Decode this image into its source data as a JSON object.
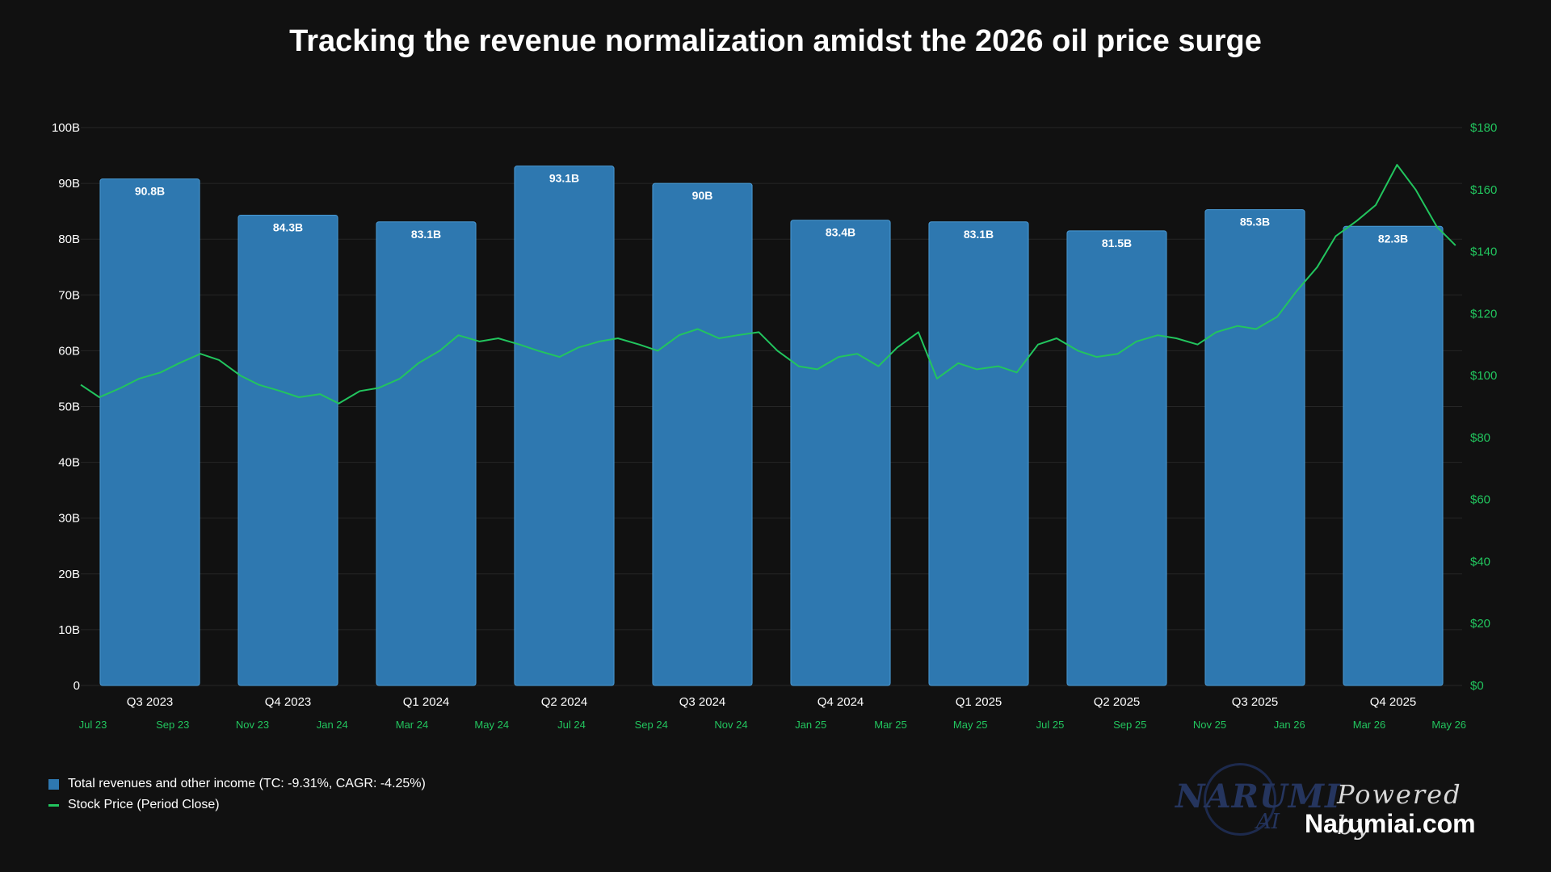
{
  "title": "Tracking the revenue normalization amidst the 2026 oil price surge",
  "colors": {
    "background": "#111111",
    "bar": "#2e78b0",
    "bar_border": "#4a9ad4",
    "line": "#22c55e",
    "grid": "#262626",
    "left_axis_text": "#ffffff",
    "right_axis_text": "#22c55e"
  },
  "legend": {
    "revenue": "Total revenues and other income (TC: -9.31%, CAGR: -4.25%)",
    "price": "Stock Price (Period Close)"
  },
  "branding": {
    "logo_text": "NARUMI",
    "logo_sub": "AI",
    "powered_by": "Powered by",
    "site": "Narumiai.com"
  },
  "chart_data": {
    "type": "bar",
    "title": "Tracking the revenue normalization amidst the 2026 oil price surge",
    "categories": [
      "Q3 2023",
      "Q4 2023",
      "Q1 2024",
      "Q2 2024",
      "Q3 2024",
      "Q4 2024",
      "Q1 2025",
      "Q2 2025",
      "Q3 2025",
      "Q4 2025"
    ],
    "series": [
      {
        "name": "Total revenues and other income (TC: -9.31%, CAGR: -4.25%)",
        "type": "bar",
        "axis": "left",
        "values": [
          90.8,
          84.3,
          83.1,
          93.1,
          90,
          83.4,
          83.1,
          81.5,
          85.3,
          82.3
        ],
        "data_labels": [
          "90.8B",
          "84.3B",
          "83.1B",
          "93.1B",
          "90B",
          "83.4B",
          "83.1B",
          "81.5B",
          "85.3B",
          "82.3B"
        ]
      },
      {
        "name": "Stock Price (Period Close)",
        "type": "line",
        "axis": "right",
        "x": [
          "2023-07-01",
          "2023-07-15",
          "2023-08-01",
          "2023-08-15",
          "2023-09-01",
          "2023-09-15",
          "2023-10-01",
          "2023-10-15",
          "2023-11-01",
          "2023-11-15",
          "2023-12-01",
          "2023-12-15",
          "2024-01-01",
          "2024-01-15",
          "2024-02-01",
          "2024-02-15",
          "2024-03-01",
          "2024-03-15",
          "2024-04-01",
          "2024-04-15",
          "2024-05-01",
          "2024-05-15",
          "2024-06-01",
          "2024-06-15",
          "2024-07-01",
          "2024-07-15",
          "2024-08-01",
          "2024-08-15",
          "2024-09-01",
          "2024-09-15",
          "2024-10-01",
          "2024-10-15",
          "2024-11-01",
          "2024-11-15",
          "2024-12-01",
          "2024-12-15",
          "2025-01-01",
          "2025-01-15",
          "2025-02-01",
          "2025-02-15",
          "2025-03-01",
          "2025-03-15",
          "2025-04-01",
          "2025-04-15",
          "2025-05-01",
          "2025-05-15",
          "2025-06-01",
          "2025-06-15",
          "2025-07-01",
          "2025-07-15",
          "2025-08-01",
          "2025-08-15",
          "2025-09-01",
          "2025-09-15",
          "2025-10-01",
          "2025-10-15",
          "2025-11-01",
          "2025-11-15",
          "2025-12-01",
          "2025-12-15",
          "2026-01-01",
          "2026-01-15",
          "2026-02-01",
          "2026-02-15",
          "2026-03-01",
          "2026-03-15",
          "2026-04-01",
          "2026-04-15",
          "2026-05-01",
          "2026-05-15"
        ],
        "values": [
          97,
          93,
          96,
          99,
          101,
          104,
          107,
          105,
          100,
          97,
          95,
          93,
          94,
          91,
          95,
          96,
          99,
          104,
          108,
          113,
          111,
          112,
          110,
          108,
          106,
          109,
          111,
          112,
          110,
          108,
          113,
          115,
          112,
          113,
          114,
          108,
          103,
          102,
          106,
          107,
          103,
          109,
          114,
          99,
          104,
          102,
          103,
          101,
          110,
          112,
          108,
          106,
          107,
          111,
          113,
          112,
          110,
          114,
          116,
          115,
          119,
          127,
          135,
          145,
          150,
          155,
          168,
          160,
          148,
          142
        ]
      }
    ],
    "left_axis": {
      "ylim": [
        0,
        100
      ],
      "ticks": [
        "0",
        "10B",
        "20B",
        "30B",
        "40B",
        "50B",
        "60B",
        "70B",
        "80B",
        "90B",
        "100B"
      ]
    },
    "right_axis": {
      "ylim": [
        0,
        180
      ],
      "ticks": [
        "$0",
        "$20",
        "$40",
        "$60",
        "$80",
        "$100",
        "$120",
        "$140",
        "$160",
        "$180"
      ]
    },
    "time_axis": {
      "ticks": [
        "Jul 23",
        "Sep 23",
        "Nov 23",
        "Jan 24",
        "Mar 24",
        "May 24",
        "Jul 24",
        "Sep 24",
        "Nov 24",
        "Jan 25",
        "Mar 25",
        "May 25",
        "Jul 25",
        "Sep 25",
        "Nov 25",
        "Jan 26",
        "Mar 26",
        "May 26"
      ]
    },
    "grid": true,
    "legend_position": "bottom-left"
  }
}
